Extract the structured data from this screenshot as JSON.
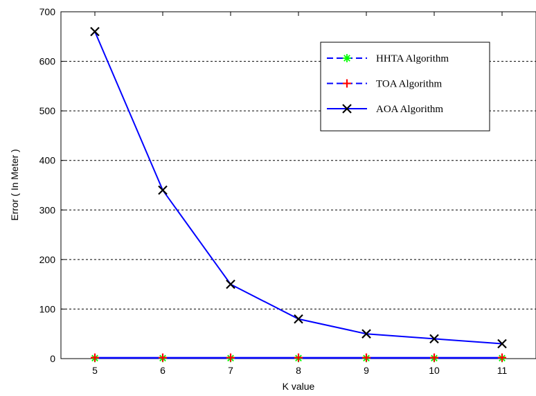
{
  "chart_data": {
    "type": "line",
    "xlabel": "K value",
    "ylabel": "Error ( In Meter )",
    "x": [
      5,
      6,
      7,
      8,
      9,
      10,
      11
    ],
    "xlim": [
      4.5,
      11.5
    ],
    "ylim": [
      0,
      700
    ],
    "xticks": [
      "5",
      "6",
      "7",
      "8",
      "9",
      "10",
      "11"
    ],
    "yticks": [
      "0",
      "100",
      "200",
      "300",
      "400",
      "500",
      "600",
      "700"
    ],
    "grid": "horizontal dashed",
    "legend_position": "top-right",
    "series": [
      {
        "name": "HHTA Algorithm",
        "marker": "asterisk",
        "marker_color": "#00ff00",
        "line_color": "#0000ff",
        "line_style": "dashed",
        "values": [
          1,
          1,
          1,
          1,
          1,
          1,
          1
        ]
      },
      {
        "name": "TOA Algorithm",
        "marker": "plus",
        "marker_color": "#ff0000",
        "line_color": "#0000ff",
        "line_style": "dashed",
        "values": [
          2,
          2,
          2,
          2,
          2,
          2,
          2
        ]
      },
      {
        "name": "AOA Algorithm",
        "marker": "x",
        "marker_color": "#000000",
        "line_color": "#0000ff",
        "line_style": "solid",
        "values": [
          660,
          340,
          150,
          80,
          50,
          40,
          30
        ]
      }
    ]
  }
}
